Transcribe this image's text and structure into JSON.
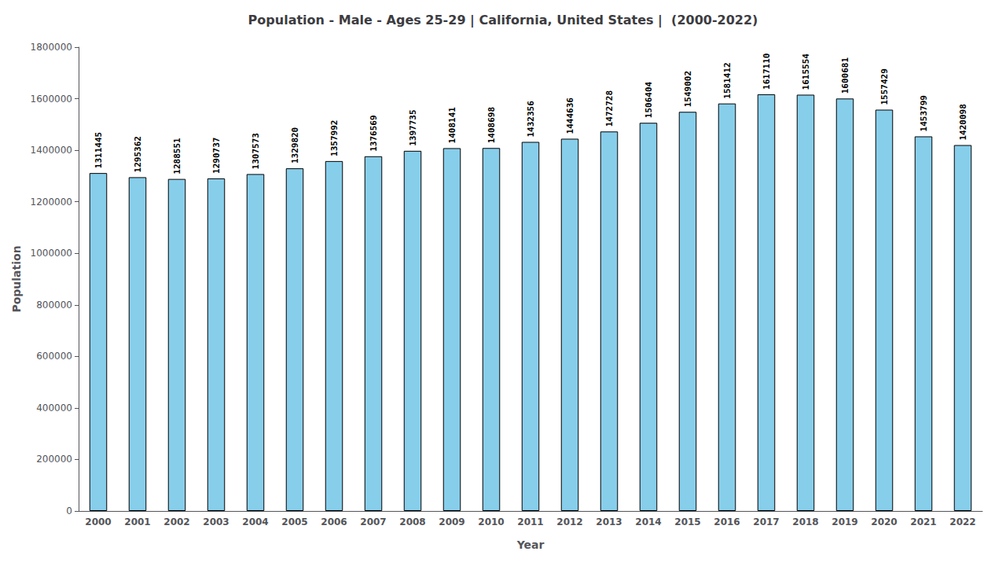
{
  "chart_data": {
    "type": "bar",
    "title": "Population - Male - Ages 25-29 | California, United States |  (2000-2022)",
    "xlabel": "Year",
    "ylabel": "Population",
    "categories": [
      "2000",
      "2001",
      "2002",
      "2003",
      "2004",
      "2005",
      "2006",
      "2007",
      "2008",
      "2009",
      "2010",
      "2011",
      "2012",
      "2013",
      "2014",
      "2015",
      "2016",
      "2017",
      "2018",
      "2019",
      "2020",
      "2021",
      "2022"
    ],
    "values": [
      1311445,
      1295362,
      1288551,
      1290737,
      1307573,
      1329820,
      1357992,
      1376569,
      1397735,
      1408141,
      1408698,
      1432356,
      1444636,
      1472728,
      1506404,
      1549002,
      1581412,
      1617110,
      1615554,
      1600681,
      1557429,
      1453799,
      1420098
    ],
    "color": "#87CEEB",
    "ylim": [
      0,
      1800000
    ],
    "yticks": [
      0,
      200000,
      400000,
      600000,
      800000,
      1000000,
      1200000,
      1400000,
      1600000,
      1800000
    ],
    "grid": false,
    "data_labels": true
  }
}
